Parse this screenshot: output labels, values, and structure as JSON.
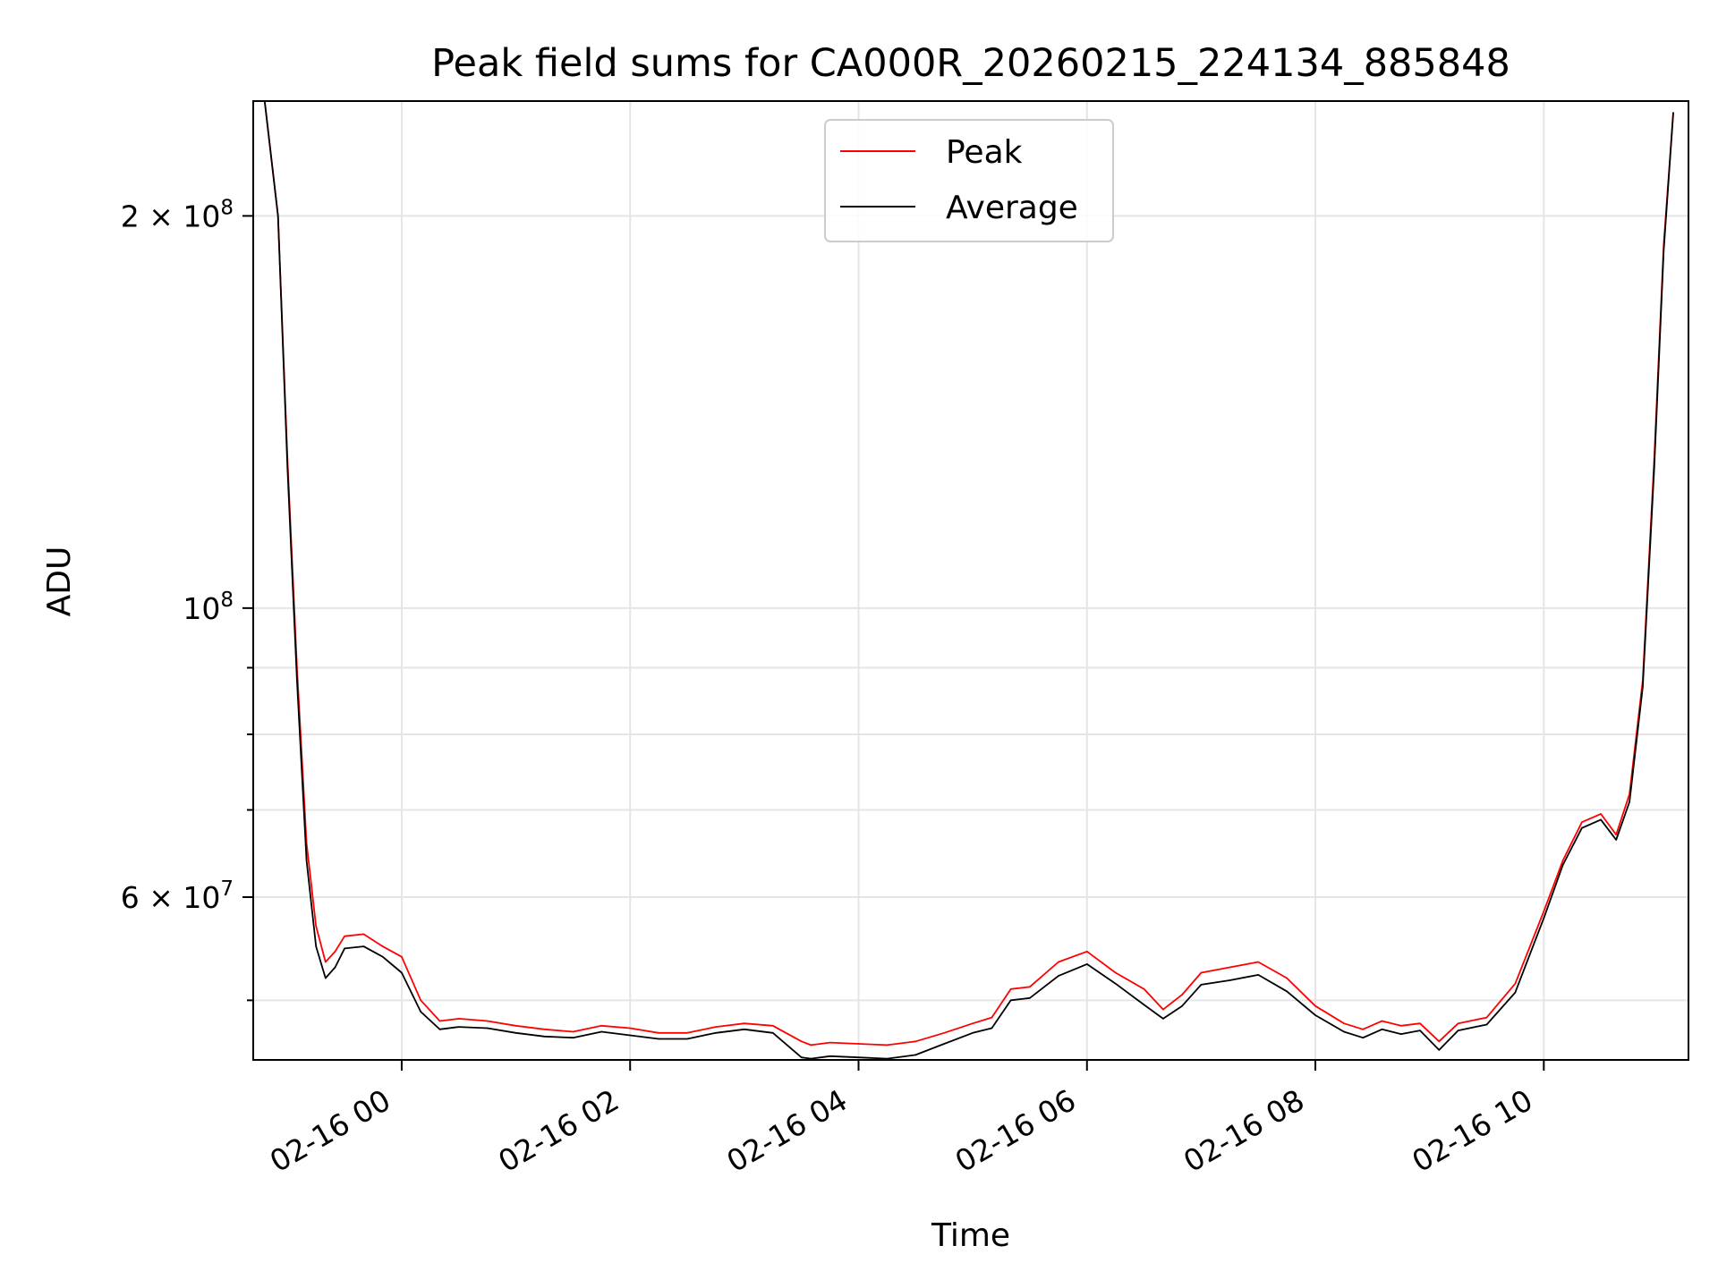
{
  "chart_data": {
    "type": "line",
    "title": "Peak field sums for CA000R_20260215_224134_885848",
    "xlabel": "Time",
    "ylabel": "ADU",
    "yscale": "log",
    "ylim": [
      45000000,
      245000000
    ],
    "xlim": [
      "2026-02-15 22:42",
      "2026-02-16 11:16"
    ],
    "grid": true,
    "legend_position": "upper center",
    "x_tick_labels": [
      "02-16 00",
      "02-16 02",
      "02-16 04",
      "02-16 06",
      "02-16 08",
      "02-16 10"
    ],
    "x_ticks": [
      "2026-02-16 00:00",
      "2026-02-16 02:00",
      "2026-02-16 04:00",
      "2026-02-16 06:00",
      "2026-02-16 08:00",
      "2026-02-16 10:00"
    ],
    "y_major_ticks": [
      {
        "value": 60000000,
        "label_mantissa": "6",
        "label_times": "×",
        "label_base": "10",
        "label_exp": "7"
      },
      {
        "value": 100000000,
        "label_mantissa": "",
        "label_times": "",
        "label_base": "10",
        "label_exp": "8"
      },
      {
        "value": 200000000,
        "label_mantissa": "2",
        "label_times": "×",
        "label_base": "10",
        "label_exp": "8"
      }
    ],
    "y_minor_ticks": [
      50000000,
      70000000,
      80000000,
      90000000
    ],
    "series": [
      {
        "name": "Peak",
        "color": "#ff0000",
        "x": [
          "2026-02-15 22:48",
          "2026-02-15 22:55",
          "2026-02-15 23:00",
          "2026-02-15 23:05",
          "2026-02-15 23:10",
          "2026-02-15 23:15",
          "2026-02-15 23:20",
          "2026-02-15 23:25",
          "2026-02-15 23:30",
          "2026-02-15 23:40",
          "2026-02-15 23:50",
          "2026-02-16 00:00",
          "2026-02-16 00:10",
          "2026-02-16 00:20",
          "2026-02-16 00:30",
          "2026-02-16 00:45",
          "2026-02-16 01:00",
          "2026-02-16 01:15",
          "2026-02-16 01:30",
          "2026-02-16 01:45",
          "2026-02-16 02:00",
          "2026-02-16 02:15",
          "2026-02-16 02:30",
          "2026-02-16 02:45",
          "2026-02-16 03:00",
          "2026-02-16 03:15",
          "2026-02-16 03:30",
          "2026-02-16 03:35",
          "2026-02-16 03:45",
          "2026-02-16 04:00",
          "2026-02-16 04:15",
          "2026-02-16 04:30",
          "2026-02-16 04:45",
          "2026-02-16 05:00",
          "2026-02-16 05:10",
          "2026-02-16 05:20",
          "2026-02-16 05:30",
          "2026-02-16 05:45",
          "2026-02-16 06:00",
          "2026-02-16 06:15",
          "2026-02-16 06:30",
          "2026-02-16 06:40",
          "2026-02-16 06:50",
          "2026-02-16 07:00",
          "2026-02-16 07:15",
          "2026-02-16 07:30",
          "2026-02-16 07:45",
          "2026-02-16 08:00",
          "2026-02-16 08:15",
          "2026-02-16 08:25",
          "2026-02-16 08:35",
          "2026-02-16 08:45",
          "2026-02-16 08:55",
          "2026-02-16 09:05",
          "2026-02-16 09:15",
          "2026-02-16 09:30",
          "2026-02-16 09:45",
          "2026-02-16 10:00",
          "2026-02-16 10:10",
          "2026-02-16 10:20",
          "2026-02-16 10:30",
          "2026-02-16 10:38",
          "2026-02-16 10:45",
          "2026-02-16 10:52",
          "2026-02-16 10:58",
          "2026-02-16 11:03",
          "2026-02-16 11:08"
        ],
        "y": [
          245000000,
          200000000,
          130000000,
          90000000,
          66000000,
          57000000,
          53500000,
          54500000,
          56000000,
          56200000,
          55000000,
          54000000,
          50000000,
          48200000,
          48400000,
          48200000,
          47800000,
          47500000,
          47300000,
          47800000,
          47600000,
          47200000,
          47200000,
          47700000,
          48000000,
          47800000,
          46500000,
          46200000,
          46400000,
          46300000,
          46200000,
          46500000,
          47200000,
          48000000,
          48500000,
          51000000,
          51200000,
          53500000,
          54500000,
          52500000,
          51000000,
          49200000,
          50500000,
          52500000,
          53000000,
          53500000,
          52000000,
          49500000,
          48000000,
          47500000,
          48200000,
          47800000,
          48000000,
          46500000,
          48000000,
          48500000,
          51500000,
          58500000,
          64000000,
          68500000,
          69500000,
          67000000,
          72000000,
          88000000,
          130000000,
          190000000,
          240000000
        ]
      },
      {
        "name": "Average",
        "color": "#000000",
        "x": [
          "2026-02-15 22:48",
          "2026-02-15 22:55",
          "2026-02-15 23:00",
          "2026-02-15 23:05",
          "2026-02-15 23:10",
          "2026-02-15 23:15",
          "2026-02-15 23:20",
          "2026-02-15 23:25",
          "2026-02-15 23:30",
          "2026-02-15 23:40",
          "2026-02-15 23:50",
          "2026-02-16 00:00",
          "2026-02-16 00:10",
          "2026-02-16 00:20",
          "2026-02-16 00:30",
          "2026-02-16 00:45",
          "2026-02-16 01:00",
          "2026-02-16 01:15",
          "2026-02-16 01:30",
          "2026-02-16 01:45",
          "2026-02-16 02:00",
          "2026-02-16 02:15",
          "2026-02-16 02:30",
          "2026-02-16 02:45",
          "2026-02-16 03:00",
          "2026-02-16 03:15",
          "2026-02-16 03:30",
          "2026-02-16 03:35",
          "2026-02-16 03:45",
          "2026-02-16 04:00",
          "2026-02-16 04:15",
          "2026-02-16 04:30",
          "2026-02-16 04:45",
          "2026-02-16 05:00",
          "2026-02-16 05:10",
          "2026-02-16 05:20",
          "2026-02-16 05:30",
          "2026-02-16 05:45",
          "2026-02-16 06:00",
          "2026-02-16 06:15",
          "2026-02-16 06:30",
          "2026-02-16 06:40",
          "2026-02-16 06:50",
          "2026-02-16 07:00",
          "2026-02-16 07:15",
          "2026-02-16 07:30",
          "2026-02-16 07:45",
          "2026-02-16 08:00",
          "2026-02-16 08:15",
          "2026-02-16 08:25",
          "2026-02-16 08:35",
          "2026-02-16 08:45",
          "2026-02-16 08:55",
          "2026-02-16 09:05",
          "2026-02-16 09:15",
          "2026-02-16 09:30",
          "2026-02-16 09:45",
          "2026-02-16 10:00",
          "2026-02-16 10:10",
          "2026-02-16 10:20",
          "2026-02-16 10:30",
          "2026-02-16 10:38",
          "2026-02-16 10:45",
          "2026-02-16 10:52",
          "2026-02-16 10:58",
          "2026-02-16 11:03",
          "2026-02-16 11:08"
        ],
        "y": [
          245000000,
          200000000,
          128000000,
          88000000,
          64000000,
          55000000,
          52000000,
          53000000,
          54800000,
          55000000,
          54000000,
          52500000,
          49000000,
          47500000,
          47700000,
          47600000,
          47200000,
          46900000,
          46800000,
          47300000,
          47000000,
          46700000,
          46700000,
          47200000,
          47500000,
          47200000,
          45200000,
          45100000,
          45300000,
          45200000,
          45100000,
          45400000,
          46300000,
          47200000,
          47600000,
          50000000,
          50200000,
          52200000,
          53300000,
          51500000,
          49600000,
          48400000,
          49500000,
          51400000,
          51800000,
          52300000,
          50800000,
          48700000,
          47300000,
          46800000,
          47500000,
          47100000,
          47400000,
          45800000,
          47400000,
          47900000,
          50700000,
          57800000,
          63500000,
          67800000,
          68800000,
          66400000,
          71000000,
          87000000,
          128000000,
          188000000,
          240000000
        ]
      }
    ]
  }
}
